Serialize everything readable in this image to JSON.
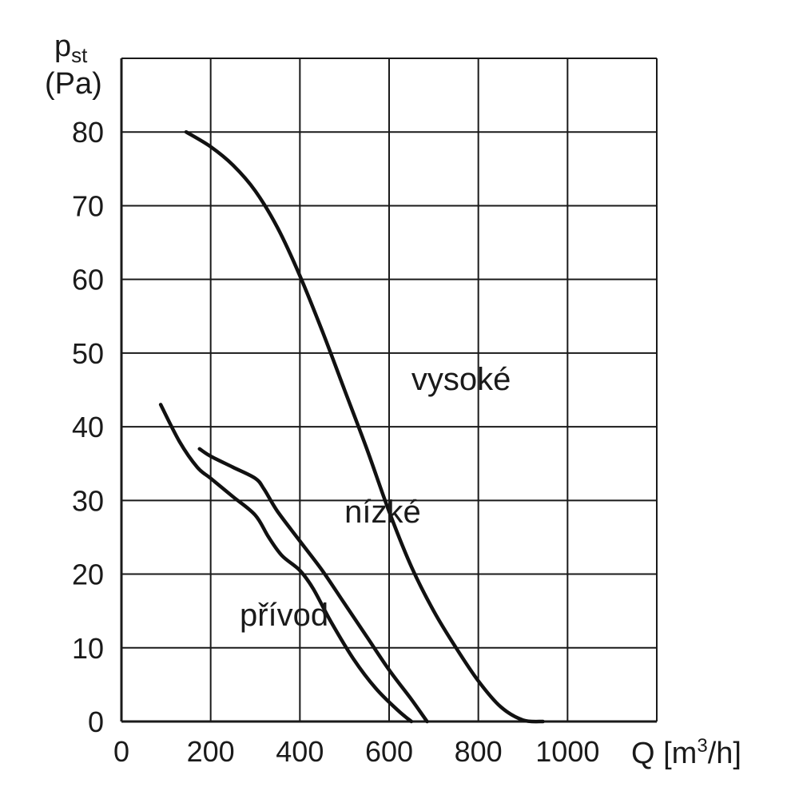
{
  "chart_data": {
    "type": "line",
    "ylabel_main": "p",
    "ylabel_sub": "st",
    "ylabel_unit": "(Pa)",
    "xlabel_prefix": "Q [m",
    "xlabel_sup": "3",
    "xlabel_suffix": "/h]",
    "xlim": [
      0,
      1200
    ],
    "ylim": [
      0,
      90
    ],
    "x_ticks": [
      0,
      200,
      400,
      600,
      800,
      1000
    ],
    "x_tick_labels": [
      "0",
      "200",
      "400",
      "600",
      "800",
      "1000"
    ],
    "y_ticks": [
      0,
      10,
      20,
      30,
      40,
      50,
      60,
      70,
      80
    ],
    "y_tick_labels": [
      "0",
      "10",
      "20",
      "30",
      "40",
      "50",
      "60",
      "70",
      "80"
    ],
    "grid": true,
    "series": [
      {
        "name": "vysoké",
        "label_at": [
          650,
          45
        ],
        "points": [
          [
            145,
            80
          ],
          [
            200,
            78
          ],
          [
            250,
            75.5
          ],
          [
            300,
            72
          ],
          [
            350,
            67
          ],
          [
            400,
            60.5
          ],
          [
            450,
            53
          ],
          [
            500,
            45
          ],
          [
            550,
            37
          ],
          [
            600,
            28.5
          ],
          [
            650,
            21
          ],
          [
            700,
            15
          ],
          [
            750,
            10
          ],
          [
            800,
            5.5
          ],
          [
            850,
            2
          ],
          [
            900,
            0.2
          ],
          [
            945,
            0
          ]
        ]
      },
      {
        "name": "nízké",
        "label_at": [
          500,
          27
        ],
        "points": [
          [
            175,
            37
          ],
          [
            200,
            36
          ],
          [
            250,
            34.5
          ],
          [
            300,
            33
          ],
          [
            320,
            31.5
          ],
          [
            350,
            28.5
          ],
          [
            400,
            24.5
          ],
          [
            450,
            20.5
          ],
          [
            500,
            16
          ],
          [
            550,
            11.5
          ],
          [
            600,
            7
          ],
          [
            650,
            3
          ],
          [
            685,
            0
          ]
        ]
      },
      {
        "name": "přívod",
        "label_at": [
          265,
          13
        ],
        "points": [
          [
            88,
            43
          ],
          [
            130,
            38
          ],
          [
            170,
            34.5
          ],
          [
            200,
            33
          ],
          [
            250,
            30.5
          ],
          [
            300,
            28
          ],
          [
            330,
            25
          ],
          [
            360,
            22.5
          ],
          [
            400,
            20.5
          ],
          [
            430,
            18
          ],
          [
            470,
            13.5
          ],
          [
            520,
            8.5
          ],
          [
            570,
            4.5
          ],
          [
            620,
            1.5
          ],
          [
            650,
            0
          ]
        ]
      }
    ]
  }
}
